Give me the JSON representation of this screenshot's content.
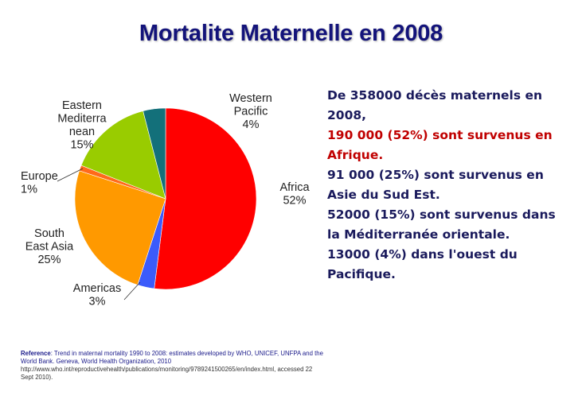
{
  "title": "Mortalite Maternelle en 2008",
  "chart_data": {
    "type": "pie",
    "title": "",
    "slices": [
      {
        "name": "Africa",
        "value": 52,
        "label_lines": [
          "Africa",
          "52%"
        ],
        "color": "#ff0000"
      },
      {
        "name": "Americas",
        "value": 3,
        "label_lines": [
          "Americas",
          "3%"
        ],
        "color": "#3b5bfb"
      },
      {
        "name": "South East Asia",
        "value": 25,
        "label_lines": [
          "South",
          "East Asia",
          "25%"
        ],
        "color": "#ff9900"
      },
      {
        "name": "Europe",
        "value": 1,
        "label_lines": [
          "Europe",
          "1%"
        ],
        "color": "#ff6a1a"
      },
      {
        "name": "Eastern Mediterranean",
        "value": 15,
        "label_lines": [
          "Eastern",
          "Mediterra",
          "nean",
          "15%"
        ],
        "color": "#99cc00"
      },
      {
        "name": "Western Pacific",
        "value": 4,
        "label_lines": [
          "Western",
          "Pacific",
          "4%"
        ],
        "color": "#13707a"
      }
    ]
  },
  "facts": [
    {
      "text": "De 358000 décès maternels en",
      "color": "#1a1a5c"
    },
    {
      "text": "2008,",
      "color": "#1a1a5c"
    },
    {
      "text": "190 000 (52%) sont survenus en",
      "color": "#c00000"
    },
    {
      "text": "Afrique.",
      "color": "#c00000"
    },
    {
      "text": "91 000 (25%) sont survenus en",
      "color": "#1a1a5c"
    },
    {
      "text": "Asie du Sud Est.",
      "color": "#1a1a5c"
    },
    {
      "text": "52000 (15%) sont survenus dans",
      "color": "#1a1a5c"
    },
    {
      "text": "la Méditerranée orientale.",
      "color": "#1a1a5c"
    },
    {
      "text": "13000 (4%) dans l'ouest du",
      "color": "#1a1a5c"
    },
    {
      "text": "Pacifique.",
      "color": "#1a1a5c"
    }
  ],
  "reference": {
    "label": "Reference",
    "text": ":  Trend in maternal mortality 1990 to 2008: estimates developed  by WHO, UNICEF, UNFPA and the World Bank. Geneva,  World Health Organization, 2010",
    "url": "http://www.who.int/reproductivehealth/publications/monitoring/9789241500265/en/index.html, accessed 22 Sept 2010)."
  }
}
